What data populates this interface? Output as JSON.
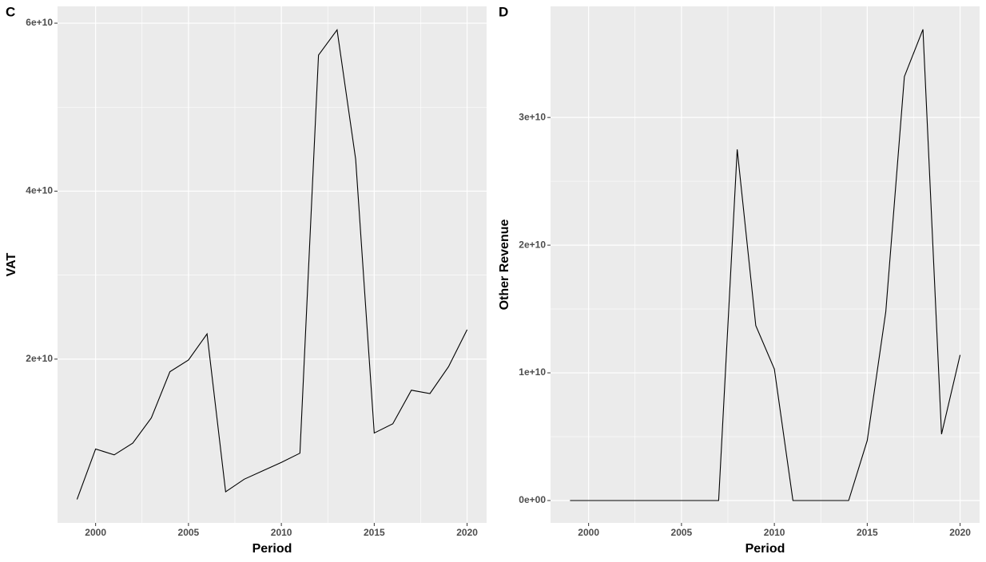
{
  "chart_data": [
    {
      "type": "line",
      "tag": "C",
      "x_label": "Period",
      "y_label": "VAT",
      "x": [
        1999,
        2000,
        2001,
        2002,
        2003,
        2004,
        2005,
        2006,
        2007,
        2008,
        2009,
        2010,
        2011,
        2012,
        2013,
        2014,
        2015,
        2016,
        2017,
        2018,
        2019,
        2020
      ],
      "series": [
        {
          "name": "VAT",
          "color": "#000000",
          "values": [
            3300000000,
            9300000000,
            8600000000,
            10000000000,
            13000000000,
            18500000000,
            19900000000,
            23000000000,
            4200000000,
            5700000000,
            6700000000,
            7700000000,
            8800000000,
            56200000000,
            59200000000,
            43800000000,
            11200000000,
            12300000000,
            16300000000,
            15900000000,
            19100000000,
            23500000000
          ]
        }
      ],
      "xlim": [
        1997.95,
        2021.05
      ],
      "xticks": [
        2000,
        2005,
        2010,
        2015,
        2020
      ],
      "ylim": [
        500000000,
        62000000000
      ],
      "yticks": [
        {
          "value": 20000000000,
          "label": "2e+10"
        },
        {
          "value": 40000000000,
          "label": "4e+10"
        },
        {
          "value": 60000000000,
          "label": "6e+10"
        }
      ],
      "grid": true
    },
    {
      "type": "line",
      "tag": "D",
      "x_label": "Period",
      "y_label": "Other Revenue",
      "x": [
        1999,
        2000,
        2001,
        2002,
        2003,
        2004,
        2005,
        2006,
        2007,
        2008,
        2009,
        2010,
        2011,
        2012,
        2013,
        2014,
        2015,
        2016,
        2017,
        2018,
        2019,
        2020
      ],
      "series": [
        {
          "name": "Other Revenue",
          "color": "#000000",
          "values": [
            0,
            0,
            0,
            0,
            0,
            0,
            0,
            0,
            0,
            27500000000,
            13700000000,
            10300000000,
            0,
            0,
            0,
            0,
            4700000000,
            14800000000,
            33200000000,
            36900000000,
            5200000000,
            11400000000
          ]
        }
      ],
      "xlim": [
        1997.95,
        2021.05
      ],
      "xticks": [
        2000,
        2005,
        2010,
        2015,
        2020
      ],
      "ylim": [
        -1750000000,
        38700000000
      ],
      "yticks": [
        {
          "value": 0,
          "label": "0e+00"
        },
        {
          "value": 10000000000,
          "label": "1e+10"
        },
        {
          "value": 20000000000,
          "label": "2e+10"
        },
        {
          "value": 30000000000,
          "label": "3e+10"
        }
      ],
      "grid": true
    }
  ]
}
